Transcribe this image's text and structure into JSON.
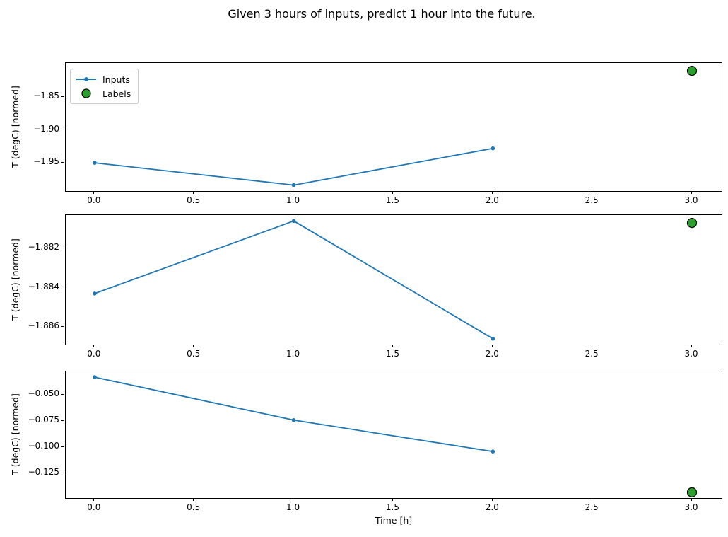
{
  "figure": {
    "title": "Given 3 hours of inputs, predict 1 hour into the future.",
    "xlabel": "Time [h]",
    "legend": {
      "items": [
        {
          "label": "Inputs"
        },
        {
          "label": "Labels"
        }
      ]
    },
    "colors": {
      "inputs_line": "#1f77b4",
      "labels_fill": "#2ca02c",
      "labels_edge": "#000000",
      "axis": "#000000",
      "legend_border": "#cccccc"
    }
  },
  "chart_data": [
    {
      "type": "line",
      "ylabel": "T (degC) [normed]",
      "x": [
        0.0,
        1.0,
        2.0
      ],
      "series": [
        {
          "name": "Inputs",
          "values": [
            -1.95,
            -1.984,
            -1.928
          ]
        }
      ],
      "label_point": {
        "name": "Labels",
        "x": 3.0,
        "y": -1.81
      },
      "xlim": [
        -0.145,
        3.149
      ],
      "ylim": [
        -1.993,
        -1.798
      ],
      "xticks": [
        0.0,
        0.5,
        1.0,
        1.5,
        2.0,
        2.5,
        3.0
      ],
      "xtick_labels": [
        "0.0",
        "0.5",
        "1.0",
        "1.5",
        "2.0",
        "2.5",
        "3.0"
      ],
      "yticks": [
        -1.85,
        -1.9,
        -1.95
      ],
      "ytick_labels": [
        "−1.85",
        "−1.90",
        "−1.95"
      ],
      "legend": true,
      "grid": false
    },
    {
      "type": "line",
      "ylabel": "T (degC) [normed]",
      "x": [
        0.0,
        1.0,
        2.0
      ],
      "series": [
        {
          "name": "Inputs",
          "values": [
            -1.8843,
            -1.8806,
            -1.8866
          ]
        }
      ],
      "label_point": {
        "name": "Labels",
        "x": 3.0,
        "y": -1.8807
      },
      "xlim": [
        -0.145,
        3.149
      ],
      "ylim": [
        -1.8869,
        -1.8803
      ],
      "xticks": [
        0.0,
        0.5,
        1.0,
        1.5,
        2.0,
        2.5,
        3.0
      ],
      "xtick_labels": [
        "0.0",
        "0.5",
        "1.0",
        "1.5",
        "2.0",
        "2.5",
        "3.0"
      ],
      "yticks": [
        -1.882,
        -1.884,
        -1.886
      ],
      "ytick_labels": [
        "−1.882",
        "−1.884",
        "−1.886"
      ],
      "legend": false,
      "grid": false
    },
    {
      "type": "line",
      "ylabel": "T (degC) [normed]",
      "x": [
        0.0,
        1.0,
        2.0
      ],
      "series": [
        {
          "name": "Inputs",
          "values": [
            -0.033,
            -0.074,
            -0.104
          ]
        }
      ],
      "label_point": {
        "name": "Labels",
        "x": 3.0,
        "y": -0.143
      },
      "xlim": [
        -0.145,
        3.149
      ],
      "ylim": [
        -0.1485,
        -0.0275
      ],
      "xticks": [
        0.0,
        0.5,
        1.0,
        1.5,
        2.0,
        2.5,
        3.0
      ],
      "xtick_labels": [
        "0.0",
        "0.5",
        "1.0",
        "1.5",
        "2.0",
        "2.5",
        "3.0"
      ],
      "yticks": [
        -0.05,
        -0.075,
        -0.1,
        -0.125
      ],
      "ytick_labels": [
        "−0.050",
        "−0.075",
        "−0.100",
        "−0.125"
      ],
      "legend": false,
      "grid": false
    }
  ]
}
